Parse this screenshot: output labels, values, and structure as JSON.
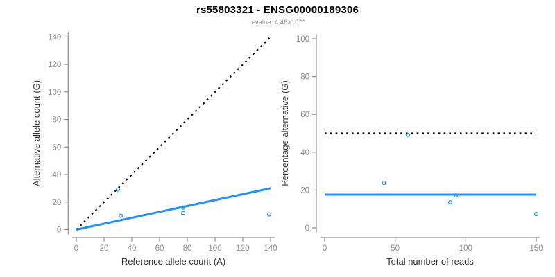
{
  "header": {
    "title": "rs55803321 - ENSG00000189306",
    "subtitle_prefix": "p-value: ",
    "p_value_mantissa": "4.46",
    "multiply_sign": "×",
    "base": "10",
    "exponent": "-44"
  },
  "colors": {
    "accent": "#1E90FF",
    "dotted_line": "#000000",
    "axis": "#8c8c8c",
    "tick_label": "#8c8c8c",
    "axis_title": "#333333",
    "title": "#000000",
    "subtitle": "#8c8c8c",
    "background": "#ffffff"
  },
  "chart_data": [
    {
      "type": "scatter",
      "name": "allele-counts-plot",
      "xlabel": "Reference allele count (A)",
      "ylabel": "Alternative allele count (G)",
      "xlim": [
        0,
        140
      ],
      "ylim": [
        0,
        140
      ],
      "xticks": [
        0,
        20,
        40,
        60,
        80,
        100,
        120,
        140
      ],
      "yticks": [
        0,
        20,
        40,
        60,
        80,
        100,
        120,
        140
      ],
      "grid": false,
      "points": [
        [
          30,
          29
        ],
        [
          32,
          10
        ],
        [
          77,
          16
        ],
        [
          77,
          12
        ],
        [
          139,
          11
        ]
      ],
      "lines": [
        {
          "name": "identity-line",
          "style": "dotted",
          "color": "#000000",
          "from": [
            0,
            0
          ],
          "to": [
            140,
            140
          ]
        },
        {
          "name": "fit-line",
          "style": "solid",
          "color": "#1E90FF",
          "from": [
            0,
            0
          ],
          "to": [
            140,
            30
          ]
        }
      ]
    },
    {
      "type": "scatter",
      "name": "percentage-alternative-plot",
      "xlabel": "Total number of reads",
      "ylabel": "Percentage alternative (G)",
      "xlim": [
        0,
        150
      ],
      "ylim": [
        0,
        100
      ],
      "xticks": [
        0,
        50,
        100,
        150
      ],
      "yticks": [
        0,
        20,
        40,
        60,
        80,
        100
      ],
      "grid": false,
      "points": [
        [
          59,
          49.2
        ],
        [
          42,
          23.8
        ],
        [
          93,
          17.2
        ],
        [
          89,
          13.5
        ],
        [
          150,
          7.3
        ]
      ],
      "lines": [
        {
          "name": "expected-50pct-line",
          "style": "dotted",
          "color": "#000000",
          "from": [
            0,
            50
          ],
          "to": [
            150,
            50
          ]
        },
        {
          "name": "fit-line",
          "style": "solid",
          "color": "#1E90FF",
          "from": [
            0,
            17.6
          ],
          "to": [
            150,
            17.6
          ]
        }
      ]
    }
  ]
}
